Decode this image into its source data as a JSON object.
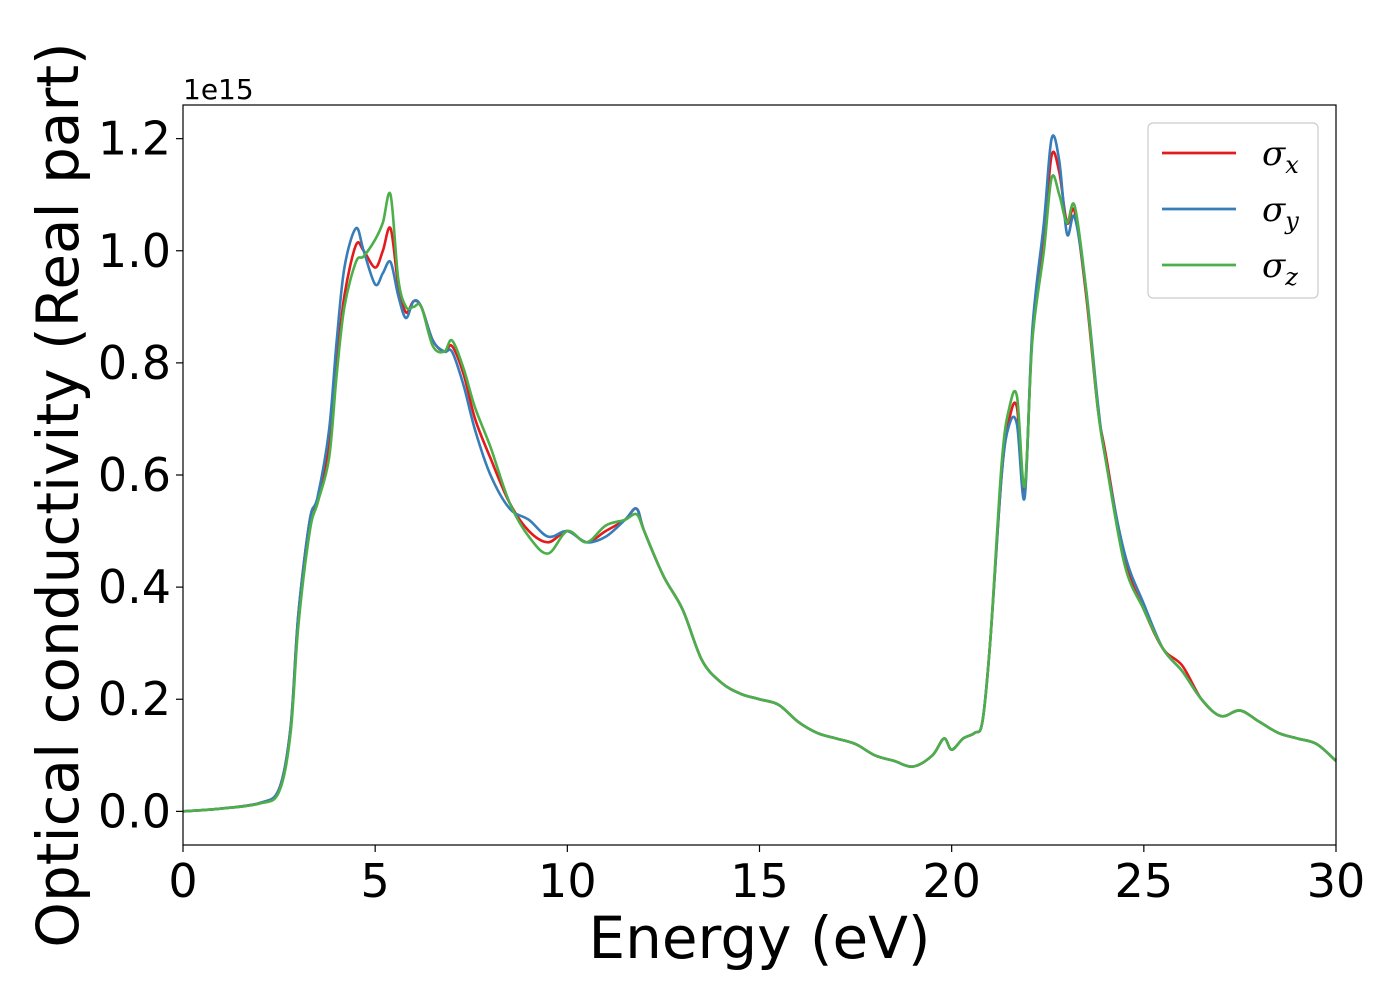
{
  "chart_data": {
    "type": "line",
    "xlabel": "Energy (eV)",
    "ylabel": "Optical conductivity (Real part)",
    "y_offset_label": "1e15",
    "xlim": [
      0,
      30
    ],
    "ylim": [
      -0.06,
      1.26
    ],
    "xticks": [
      "0",
      "5",
      "10",
      "15",
      "20",
      "25",
      "30"
    ],
    "yticks": [
      "0.0",
      "0.2",
      "0.4",
      "0.6",
      "0.8",
      "1.0",
      "1.2"
    ],
    "grid": false,
    "legend_position": "top-right",
    "series": [
      {
        "name": "σx",
        "base": "σ",
        "sub": "x",
        "color": "#e41a1c",
        "x": [
          0,
          1,
          2,
          2.5,
          2.8,
          3.0,
          3.3,
          3.5,
          3.8,
          4.0,
          4.2,
          4.5,
          4.7,
          5.0,
          5.2,
          5.4,
          5.6,
          5.8,
          6.0,
          6.2,
          6.5,
          6.8,
          7.0,
          7.3,
          7.6,
          8.0,
          8.5,
          9.0,
          9.5,
          10.0,
          10.5,
          11.0,
          11.5,
          11.8,
          12.0,
          12.5,
          13.0,
          13.5,
          14.0,
          14.5,
          15.0,
          15.5,
          16.0,
          16.5,
          17.0,
          17.5,
          18.0,
          18.5,
          19.0,
          19.5,
          19.8,
          20.0,
          20.3,
          20.6,
          20.8,
          21.0,
          21.3,
          21.5,
          21.7,
          21.9,
          22.1,
          22.4,
          22.6,
          22.8,
          23.0,
          23.2,
          23.5,
          23.8,
          24.0,
          24.5,
          25.0,
          25.5,
          26.0,
          26.5,
          27.0,
          27.5,
          28.0,
          28.5,
          29.0,
          29.5,
          30.0
        ],
        "values": [
          0.0,
          0.005,
          0.015,
          0.04,
          0.15,
          0.35,
          0.52,
          0.55,
          0.65,
          0.8,
          0.92,
          1.01,
          1.0,
          0.97,
          1.0,
          1.04,
          0.94,
          0.89,
          0.91,
          0.9,
          0.84,
          0.82,
          0.83,
          0.78,
          0.7,
          0.63,
          0.55,
          0.5,
          0.48,
          0.5,
          0.48,
          0.5,
          0.52,
          0.54,
          0.5,
          0.42,
          0.36,
          0.27,
          0.23,
          0.21,
          0.2,
          0.19,
          0.16,
          0.14,
          0.13,
          0.12,
          0.1,
          0.09,
          0.08,
          0.1,
          0.13,
          0.11,
          0.13,
          0.14,
          0.16,
          0.3,
          0.6,
          0.7,
          0.72,
          0.57,
          0.85,
          1.02,
          1.17,
          1.14,
          1.05,
          1.07,
          0.92,
          0.72,
          0.64,
          0.45,
          0.36,
          0.29,
          0.26,
          0.2,
          0.17,
          0.18,
          0.16,
          0.14,
          0.13,
          0.12,
          0.09
        ]
      },
      {
        "name": "σy",
        "base": "σ",
        "sub": "y",
        "color": "#377eb8",
        "x": [
          0,
          1,
          2,
          2.5,
          2.8,
          3.0,
          3.3,
          3.5,
          3.8,
          4.0,
          4.2,
          4.5,
          4.7,
          5.0,
          5.2,
          5.4,
          5.6,
          5.8,
          6.0,
          6.2,
          6.5,
          6.8,
          7.0,
          7.3,
          7.6,
          8.0,
          8.5,
          9.0,
          9.5,
          10.0,
          10.5,
          11.0,
          11.5,
          11.8,
          12.0,
          12.5,
          13.0,
          13.5,
          14.0,
          14.5,
          15.0,
          15.5,
          16.0,
          16.5,
          17.0,
          17.5,
          18.0,
          18.5,
          19.0,
          19.5,
          19.8,
          20.0,
          20.3,
          20.6,
          20.8,
          21.0,
          21.3,
          21.5,
          21.7,
          21.9,
          22.1,
          22.4,
          22.6,
          22.8,
          23.0,
          23.2,
          23.5,
          23.8,
          24.0,
          24.5,
          25.0,
          25.5,
          26.0,
          26.5,
          27.0,
          27.5,
          28.0,
          28.5,
          29.0,
          29.5,
          30.0
        ],
        "values": [
          0.0,
          0.005,
          0.015,
          0.04,
          0.15,
          0.35,
          0.52,
          0.56,
          0.68,
          0.84,
          0.97,
          1.04,
          1.0,
          0.94,
          0.96,
          0.98,
          0.92,
          0.88,
          0.91,
          0.9,
          0.84,
          0.82,
          0.82,
          0.76,
          0.68,
          0.6,
          0.54,
          0.52,
          0.49,
          0.5,
          0.48,
          0.49,
          0.52,
          0.54,
          0.5,
          0.42,
          0.36,
          0.27,
          0.23,
          0.21,
          0.2,
          0.19,
          0.16,
          0.14,
          0.13,
          0.12,
          0.1,
          0.09,
          0.08,
          0.1,
          0.13,
          0.11,
          0.13,
          0.14,
          0.16,
          0.3,
          0.6,
          0.69,
          0.69,
          0.56,
          0.86,
          1.05,
          1.2,
          1.16,
          1.03,
          1.06,
          0.93,
          0.73,
          0.63,
          0.46,
          0.37,
          0.29,
          0.25,
          0.2,
          0.17,
          0.18,
          0.16,
          0.14,
          0.13,
          0.12,
          0.09
        ]
      },
      {
        "name": "σz",
        "base": "σ",
        "sub": "z",
        "color": "#4daf4a",
        "x": [
          0,
          1,
          2,
          2.5,
          2.8,
          3.0,
          3.3,
          3.5,
          3.8,
          4.0,
          4.2,
          4.5,
          4.7,
          5.0,
          5.2,
          5.4,
          5.6,
          5.8,
          6.0,
          6.2,
          6.5,
          6.8,
          7.0,
          7.3,
          7.6,
          8.0,
          8.5,
          9.0,
          9.5,
          10.0,
          10.5,
          11.0,
          11.5,
          11.8,
          12.0,
          12.5,
          13.0,
          13.5,
          14.0,
          14.5,
          15.0,
          15.5,
          16.0,
          16.5,
          17.0,
          17.5,
          18.0,
          18.5,
          19.0,
          19.5,
          19.8,
          20.0,
          20.3,
          20.6,
          20.8,
          21.0,
          21.3,
          21.5,
          21.7,
          21.9,
          22.1,
          22.4,
          22.6,
          22.8,
          23.0,
          23.2,
          23.5,
          23.8,
          24.0,
          24.5,
          25.0,
          25.5,
          26.0,
          26.5,
          27.0,
          27.5,
          28.0,
          28.5,
          29.0,
          29.5,
          30.0
        ],
        "values": [
          0.0,
          0.005,
          0.014,
          0.035,
          0.14,
          0.33,
          0.5,
          0.55,
          0.63,
          0.78,
          0.9,
          0.98,
          0.99,
          1.02,
          1.05,
          1.1,
          0.95,
          0.9,
          0.9,
          0.9,
          0.83,
          0.82,
          0.84,
          0.79,
          0.72,
          0.65,
          0.55,
          0.49,
          0.46,
          0.5,
          0.48,
          0.51,
          0.52,
          0.53,
          0.5,
          0.42,
          0.36,
          0.27,
          0.23,
          0.21,
          0.2,
          0.19,
          0.16,
          0.14,
          0.13,
          0.12,
          0.1,
          0.09,
          0.08,
          0.1,
          0.13,
          0.11,
          0.13,
          0.14,
          0.16,
          0.3,
          0.62,
          0.72,
          0.74,
          0.58,
          0.84,
          1.0,
          1.13,
          1.1,
          1.05,
          1.08,
          0.93,
          0.72,
          0.63,
          0.44,
          0.36,
          0.29,
          0.25,
          0.2,
          0.17,
          0.18,
          0.16,
          0.14,
          0.13,
          0.12,
          0.09
        ]
      }
    ]
  }
}
